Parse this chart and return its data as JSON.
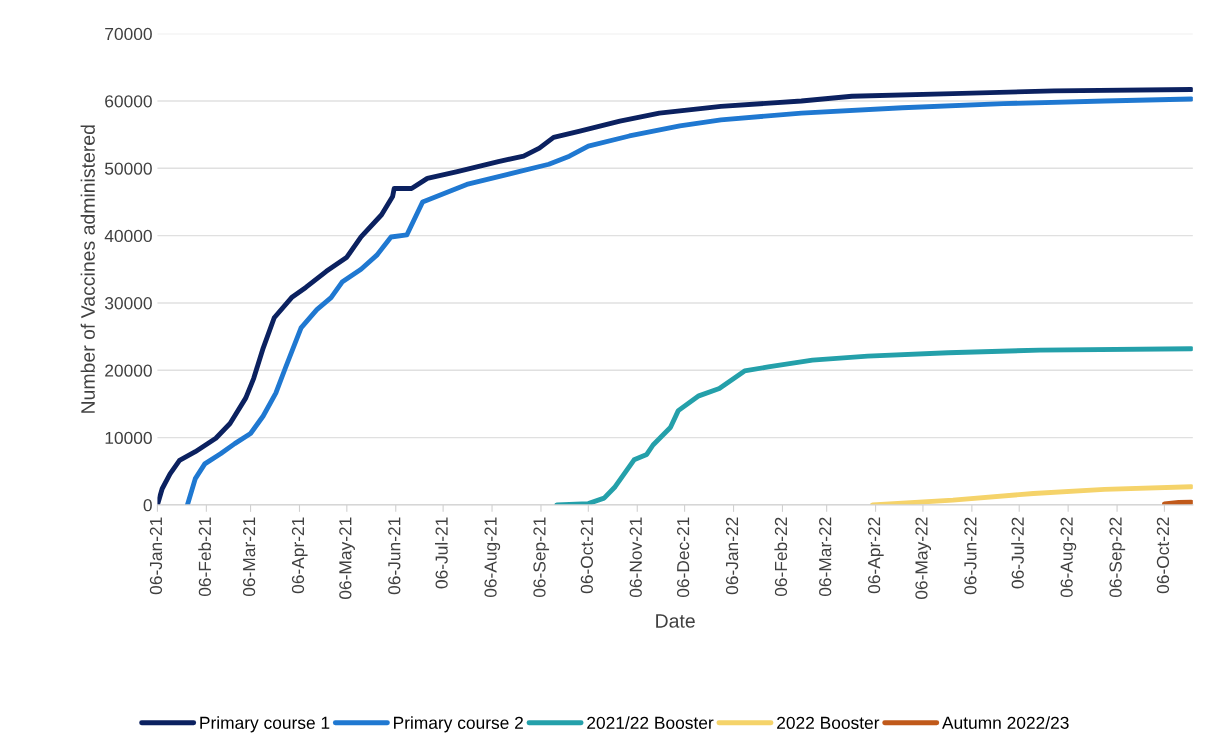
{
  "chart_data": {
    "type": "line",
    "xlabel": "Date",
    "ylabel": "Number of Vaccines administered",
    "xlim": [
      "2021-01-06",
      "2022-10-24"
    ],
    "ylim": [
      0,
      70000
    ],
    "yticks": [
      0,
      10000,
      20000,
      30000,
      40000,
      50000,
      60000,
      70000
    ],
    "xticks": [
      {
        "value": "2021-01-06",
        "label": "06-Jan-21"
      },
      {
        "value": "2021-02-06",
        "label": "06-Feb-21"
      },
      {
        "value": "2021-03-06",
        "label": "06-Mar-21"
      },
      {
        "value": "2021-04-06",
        "label": "06-Apr-21"
      },
      {
        "value": "2021-05-06",
        "label": "06-May-21"
      },
      {
        "value": "2021-06-06",
        "label": "06-Jun-21"
      },
      {
        "value": "2021-07-06",
        "label": "06-Jul-21"
      },
      {
        "value": "2021-08-06",
        "label": "06-Aug-21"
      },
      {
        "value": "2021-09-06",
        "label": "06-Sep-21"
      },
      {
        "value": "2021-10-06",
        "label": "06-Oct-21"
      },
      {
        "value": "2021-11-06",
        "label": "06-Nov-21"
      },
      {
        "value": "2021-12-06",
        "label": "06-Dec-21"
      },
      {
        "value": "2022-01-06",
        "label": "06-Jan-22"
      },
      {
        "value": "2022-02-06",
        "label": "06-Feb-22"
      },
      {
        "value": "2022-03-06",
        "label": "06-Mar-22"
      },
      {
        "value": "2022-04-06",
        "label": "06-Apr-22"
      },
      {
        "value": "2022-05-06",
        "label": "06-May-22"
      },
      {
        "value": "2022-06-06",
        "label": "06-Jun-22"
      },
      {
        "value": "2022-07-06",
        "label": "06-Jul-22"
      },
      {
        "value": "2022-08-06",
        "label": "06-Aug-22"
      },
      {
        "value": "2022-09-06",
        "label": "06-Sep-22"
      },
      {
        "value": "2022-10-06",
        "label": "06-Oct-22"
      }
    ],
    "grid": "y",
    "legend": "bottom",
    "marker": "none",
    "line_style": "solid",
    "series": [
      {
        "name": "Primary course 1",
        "color": "#0b2160",
        "x": [
          "2021-01-06",
          "2021-01-09",
          "2021-01-14",
          "2021-01-20",
          "2021-01-30",
          "2021-02-12",
          "2021-02-21",
          "2021-03-03",
          "2021-03-08",
          "2021-03-14",
          "2021-03-21",
          "2021-04-01",
          "2021-04-10",
          "2021-04-23",
          "2021-05-06",
          "2021-05-15",
          "2021-05-28",
          "2021-06-04",
          "2021-06-05",
          "2021-06-16",
          "2021-06-26",
          "2021-07-15",
          "2021-08-10",
          "2021-08-26",
          "2021-09-05",
          "2021-09-14",
          "2021-09-30",
          "2021-10-26",
          "2021-11-20",
          "2021-12-29",
          "2022-02-18",
          "2022-03-22",
          "2022-05-25",
          "2022-07-28",
          "2022-10-23"
        ],
        "values": [
          0,
          2400,
          4600,
          6600,
          7900,
          9900,
          12100,
          15900,
          18800,
          23300,
          27800,
          30800,
          32300,
          34700,
          36800,
          39800,
          43100,
          45800,
          47000,
          47000,
          48500,
          49500,
          51000,
          51800,
          53000,
          54600,
          55500,
          57000,
          58200,
          59200,
          60000,
          60700,
          61100,
          61500,
          61700
        ]
      },
      {
        "name": "Primary course 2",
        "color": "#1f78d1",
        "x": [
          "2021-01-25",
          "2021-01-30",
          "2021-02-05",
          "2021-02-15",
          "2021-02-24",
          "2021-03-06",
          "2021-03-14",
          "2021-03-22",
          "2021-03-28",
          "2021-04-07",
          "2021-04-17",
          "2021-04-26",
          "2021-05-03",
          "2021-05-15",
          "2021-05-25",
          "2021-06-03",
          "2021-06-13",
          "2021-06-23",
          "2021-07-05",
          "2021-07-21",
          "2021-08-16",
          "2021-09-11",
          "2021-09-24",
          "2021-10-06",
          "2021-11-01",
          "2021-12-03",
          "2021-12-29",
          "2022-02-18",
          "2022-04-23",
          "2022-06-26",
          "2022-08-29",
          "2022-10-23"
        ],
        "values": [
          0,
          3900,
          6100,
          7600,
          9100,
          10600,
          13200,
          16600,
          20300,
          26300,
          29000,
          30800,
          33100,
          35000,
          37100,
          39800,
          40100,
          45000,
          46100,
          47600,
          49100,
          50600,
          51800,
          53300,
          54800,
          56300,
          57200,
          58200,
          59000,
          59600,
          60000,
          60300
        ]
      },
      {
        "name": "2021/22 Booster",
        "color": "#24a0aa",
        "x": [
          "2021-09-16",
          "2021-10-06",
          "2021-10-16",
          "2021-10-23",
          "2021-11-04",
          "2021-11-12",
          "2021-11-16",
          "2021-11-27",
          "2021-12-02",
          "2021-12-15",
          "2021-12-28",
          "2022-01-13",
          "2022-01-28",
          "2022-02-25",
          "2022-04-01",
          "2022-05-22",
          "2022-07-19",
          "2022-10-23"
        ],
        "values": [
          0,
          200,
          1000,
          2700,
          6700,
          7500,
          8900,
          11500,
          14000,
          16200,
          17300,
          19900,
          20500,
          21500,
          22100,
          22600,
          23000,
          23200
        ]
      },
      {
        "name": "2022 Booster",
        "color": "#f5d36a",
        "x": [
          "2022-04-04",
          "2022-05-25",
          "2022-07-15",
          "2022-08-29",
          "2022-10-23"
        ],
        "values": [
          0,
          700,
          1700,
          2300,
          2700
        ]
      },
      {
        "name": "Autumn 2022/23",
        "color": "#c0591a",
        "x": [
          "2022-10-06",
          "2022-10-15",
          "2022-10-23"
        ],
        "values": [
          150,
          350,
          400
        ]
      }
    ]
  }
}
